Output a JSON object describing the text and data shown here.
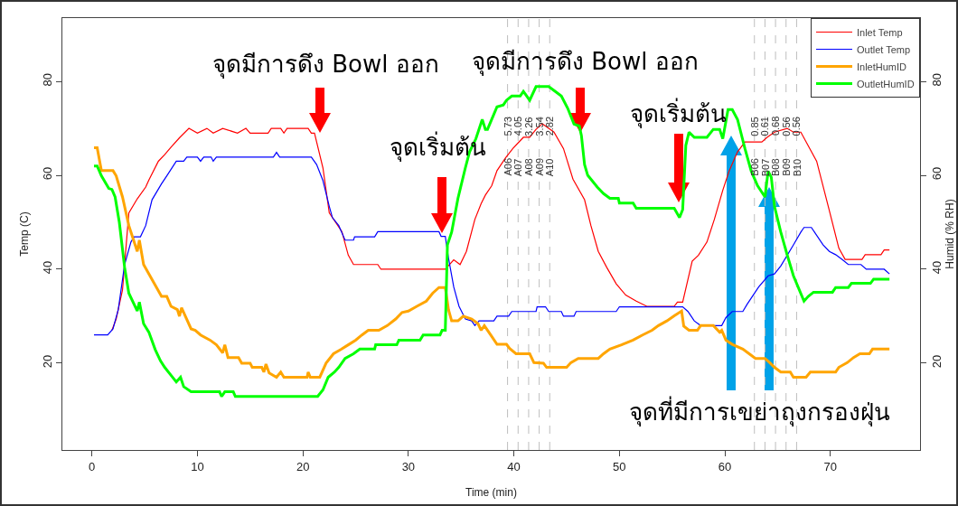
{
  "chart_data": {
    "type": "line",
    "xlabel": "Time (min)",
    "ylabel": "Temp (C)",
    "y2label": "Humid (% RH)",
    "xlim": [
      -2.8,
      78.5
    ],
    "xticks": [
      0,
      10,
      20,
      30,
      40,
      50,
      60,
      70
    ],
    "ylim": [
      1.5,
      93.5
    ],
    "yticks": [
      20,
      40,
      60,
      80
    ],
    "y2lim": [
      1.5,
      93.5
    ],
    "y2ticks": [
      20,
      40,
      60,
      80
    ],
    "grid": false,
    "legend": "top right",
    "marker": "none",
    "line_style": "solid",
    "series": [
      {
        "name": "Inlet Temp",
        "color": "#ff0000",
        "x": [
          1.9,
          2.3,
          2.9,
          3.5,
          4.3,
          5.1,
          5.4,
          6.3,
          6.9,
          7.5,
          8.3,
          9.2,
          10,
          10.9,
          11.5,
          12.4,
          13.8,
          14.6,
          15,
          16.7,
          17,
          17.9,
          18.2,
          18.5,
          20.5,
          20.8,
          21.1,
          21.9,
          22.5,
          23.7,
          24.3,
          24.8,
          27.1,
          27.4,
          33.5,
          34.3,
          34.9,
          35.5,
          36.3,
          36.9,
          37.3,
          37.9,
          38.4,
          39.2,
          39.9,
          40.9,
          41.5,
          42.1,
          42.7,
          43.3,
          43.8,
          44.7,
          45.6,
          46.7,
          47.3,
          48,
          48.8,
          49.7,
          50.6,
          51.6,
          52.6,
          55.2,
          55.5,
          56,
          56.9,
          57.5,
          58.3,
          59,
          59.8,
          60.4,
          61.2,
          61.9,
          63.5,
          64,
          64.7,
          65.9,
          66.5,
          67.2,
          68.7,
          69.8,
          70.8,
          71.4,
          73,
          73.3,
          74.8,
          75.1,
          75.6
        ],
        "values": [
          27,
          29.4,
          35.6,
          52,
          55,
          57.5,
          59,
          63,
          64.4,
          66,
          68,
          70,
          69,
          70,
          69,
          70,
          69,
          70,
          69,
          69,
          70,
          70,
          69,
          70,
          70,
          69,
          69,
          61.6,
          52,
          48,
          43,
          41,
          41,
          40,
          40,
          42,
          41,
          43.8,
          50.6,
          54,
          55.8,
          57.8,
          61,
          63.7,
          65.7,
          68.1,
          68.1,
          69.8,
          71,
          70,
          69.2,
          65.7,
          59.2,
          54.8,
          49.3,
          43.8,
          40.4,
          36.9,
          34.5,
          33.2,
          32.1,
          32.1,
          33,
          33,
          41.7,
          43,
          45.8,
          50.6,
          56.8,
          60.9,
          65,
          67.1,
          67.1,
          68.1,
          69.2,
          70,
          69.2,
          69.2,
          63,
          53.4,
          44.5,
          42.1,
          42.1,
          43.1,
          43.1,
          44.1,
          44.1
        ]
      },
      {
        "name": "Outlet Temp",
        "color": "#0000ff",
        "x": [
          0.2,
          1.5,
          2,
          2.5,
          3.1,
          3.7,
          4,
          4.6,
          5.1,
          5.7,
          6.6,
          7.1,
          8,
          8.7,
          9,
          10,
          10.3,
          10.6,
          11.3,
          11.5,
          11.8,
          17.2,
          17.5,
          17.8,
          20.8,
          21.3,
          21.9,
          22.5,
          22.8,
          23.4,
          24,
          24.8,
          24.9,
          26.8,
          27.1,
          32.9,
          33.1,
          33.5,
          33.8,
          34.3,
          34.8,
          35.4,
          36,
          36.3,
          36.7,
          38.1,
          38.4,
          39.5,
          39.8,
          42.1,
          42.2,
          43,
          43.3,
          44.5,
          44.7,
          45.7,
          45.9,
          49.7,
          50,
          56,
          56.5,
          57.1,
          57.7,
          59.7,
          60.1,
          60.7,
          61.7,
          62.1,
          63.2,
          64.1,
          64.7,
          65.3,
          66.5,
          67.2,
          67.5,
          68.2,
          69.3,
          69.9,
          70.5,
          71.1,
          71.7,
          72.9,
          73.4,
          75.1,
          75.6
        ],
        "values": [
          26,
          26,
          27.3,
          31.4,
          41,
          45.8,
          46.9,
          46.9,
          49.3,
          54.8,
          58.2,
          59.9,
          63,
          63,
          63.9,
          63.9,
          63,
          63.9,
          63.9,
          63,
          63.9,
          63.9,
          64.9,
          63.9,
          63.9,
          62.3,
          58.9,
          53.4,
          51,
          49.3,
          46.2,
          46.2,
          46.9,
          46.9,
          48,
          48,
          47,
          47,
          42.4,
          36.2,
          32.1,
          29.4,
          29,
          28,
          29,
          29,
          30,
          30,
          31,
          31,
          32,
          32,
          31,
          31,
          30,
          30,
          31,
          31,
          32,
          32,
          31,
          29,
          28,
          28,
          29.7,
          31,
          31,
          32.5,
          36.2,
          38.6,
          39,
          40.7,
          45.2,
          47.9,
          48.9,
          48.9,
          45.2,
          43.8,
          43.1,
          42.1,
          41,
          41,
          40,
          40,
          39
        ]
      },
      {
        "name": "InletHumID",
        "color": "#ffa500",
        "axis": "y2",
        "x": [
          0.2,
          0.5,
          0.9,
          2,
          2.3,
          2.9,
          3.5,
          4.3,
          4.5,
          4.9,
          6.6,
          7.1,
          7.5,
          8.1,
          8.3,
          8.5,
          9.4,
          9.8,
          10.3,
          11.2,
          11.8,
          12.4,
          12.6,
          12.9,
          13.9,
          14.2,
          15,
          15.2,
          16.1,
          16.3,
          16.5,
          16.8,
          17.5,
          17.9,
          18.2,
          20.4,
          20.5,
          20.7,
          21.6,
          22.2,
          22.9,
          23.6,
          24.3,
          25,
          25.6,
          26.2,
          27.2,
          28,
          28.8,
          29.4,
          30,
          30.8,
          31.7,
          32.3,
          32.9,
          33.5,
          33.8,
          34.1,
          34.7,
          35.2,
          36,
          36.6,
          36.9,
          37.2,
          37.8,
          38.4,
          39.3,
          39.6,
          40.2,
          41.5,
          41.9,
          42.8,
          43.1,
          45,
          45.4,
          46.1,
          48,
          48.5,
          49.1,
          50.2,
          51.3,
          52.2,
          53.1,
          53.7,
          54.5,
          55.2,
          55.9,
          56.1,
          56.6,
          57.4,
          57.7,
          58.9,
          59.5,
          59.7,
          60.1,
          60.7,
          61.7,
          62.3,
          62.9,
          63.8,
          64.3,
          64.7,
          65.3,
          66.2,
          66.5,
          67.7,
          68.1,
          70.5,
          70.8,
          71.6,
          72.2,
          72.8,
          73.7,
          74,
          75.6
        ],
        "values": [
          65.9,
          65.9,
          61,
          61,
          59.9,
          55.4,
          49.3,
          43.8,
          46.2,
          41,
          34.2,
          34.2,
          32.1,
          31.4,
          30,
          31.8,
          27.3,
          27,
          26,
          24.9,
          23.9,
          22.2,
          23.9,
          21.2,
          21.2,
          20,
          20,
          19.1,
          19.1,
          18.1,
          19.8,
          17.9,
          17,
          18.1,
          17,
          17,
          18.1,
          17,
          17,
          20,
          22,
          22.9,
          23.9,
          24.9,
          26,
          27,
          27,
          28,
          29.4,
          30.8,
          31.1,
          32.1,
          33.2,
          34.9,
          36.1,
          36.1,
          31.4,
          29,
          29,
          30,
          29.4,
          28.4,
          27,
          28,
          26,
          24,
          24,
          23.1,
          22,
          22,
          20.1,
          20,
          19.1,
          19.1,
          20.1,
          21,
          21,
          22,
          23,
          23.9,
          24.9,
          26,
          27,
          28,
          29,
          30.1,
          31.1,
          27.9,
          27,
          27,
          28,
          28,
          26.6,
          27,
          24.9,
          24,
          23,
          22,
          21,
          21,
          20,
          19.1,
          18.1,
          18.1,
          17,
          17,
          18.1,
          18.1,
          19.1,
          20.1,
          21.2,
          22,
          22,
          23,
          23
        ]
      },
      {
        "name": "OutletHumID",
        "color": "#00ff00",
        "axis": "y2",
        "x": [
          0.2,
          0.5,
          0.9,
          1.6,
          1.9,
          2.2,
          2.6,
          3.1,
          3.5,
          4.3,
          4.5,
          4.9,
          5.4,
          6,
          6.5,
          6.9,
          7.4,
          8,
          8.4,
          8.7,
          9.4,
          12.1,
          12.3,
          12.6,
          13.4,
          13.6,
          21.4,
          21.9,
          22.4,
          23,
          23.4,
          24,
          24.8,
          25.4,
          26.8,
          26.9,
          28.9,
          29.1,
          31.1,
          31.4,
          33,
          33.2,
          33.5,
          33.7,
          34.1,
          34.7,
          35.4,
          35.8,
          36.4,
          37,
          37.3,
          37.5,
          38.4,
          39,
          39.3,
          39.8,
          40.6,
          40.9,
          41.5,
          42.1,
          43.3,
          43.9,
          44.5,
          45.1,
          45.7,
          46.2,
          46.4,
          46.7,
          47,
          47.4,
          47.9,
          48.5,
          49.1,
          49.9,
          50,
          51.3,
          51.6,
          55.2,
          55.7,
          56,
          56.3,
          56.6,
          57.1,
          58.3,
          58.9,
          59.5,
          59.8,
          60.3,
          60.7,
          61.2,
          61.9,
          62.5,
          63.1,
          63.8,
          64.1,
          64.4,
          64.7,
          65.3,
          65.9,
          66.5,
          67.5,
          67.9,
          68.4,
          70.2,
          70.5,
          71.7,
          72,
          73.8,
          74.1,
          75.6
        ],
        "values": [
          62,
          62,
          59.9,
          57.2,
          57,
          55.4,
          50,
          40.4,
          34.9,
          31.1,
          33,
          28.4,
          26.6,
          22.9,
          20.5,
          19.1,
          17.7,
          16,
          17,
          15,
          13.9,
          13.9,
          12.9,
          13.9,
          13.9,
          12.9,
          12.9,
          14.3,
          17,
          18.1,
          19.1,
          21,
          22,
          23,
          23,
          23.9,
          23.9,
          24.9,
          24.9,
          26,
          26,
          27,
          27,
          45.2,
          47.9,
          55.1,
          61.6,
          65,
          67.8,
          71.9,
          69.8,
          69.8,
          74.6,
          75,
          76,
          76.9,
          76.9,
          77.9,
          76,
          78.9,
          78.9,
          77.9,
          76.9,
          74.3,
          70.9,
          70.5,
          68.5,
          62.3,
          60,
          58.9,
          57.5,
          56.1,
          55.1,
          55.1,
          54.1,
          54.1,
          53,
          53,
          51,
          52.7,
          66.4,
          69.2,
          68.1,
          68.1,
          69.8,
          69.8,
          67.8,
          74,
          74,
          71.9,
          65.7,
          60.9,
          57.8,
          55.4,
          60.9,
          59.6,
          53.4,
          47.9,
          43.1,
          38.6,
          33.2,
          34.2,
          35.1,
          35.1,
          36.1,
          36.1,
          37,
          37,
          37.9,
          37.9
        ]
      }
    ],
    "ref_lines": [
      {
        "axis": "x",
        "value": 39.4,
        "label": "A06",
        "color": "#bebebe",
        "line_style": "dashed"
      },
      {
        "axis": "x",
        "value": 40.4,
        "label": "A07",
        "color": "#bebebe",
        "line_style": "dashed"
      },
      {
        "axis": "x",
        "value": 41.4,
        "label": "A08",
        "color": "#bebebe",
        "line_style": "dashed"
      },
      {
        "axis": "x",
        "value": 42.4,
        "label": "A09",
        "color": "#bebebe",
        "line_style": "dashed"
      },
      {
        "axis": "x",
        "value": 43.4,
        "label": "A10",
        "color": "#bebebe",
        "line_style": "dashed"
      },
      {
        "axis": "x",
        "value": 62.8,
        "label": "B06",
        "color": "#bebebe",
        "line_style": "dashed"
      },
      {
        "axis": "x",
        "value": 63.8,
        "label": "B07",
        "color": "#bebebe",
        "line_style": "dashed"
      },
      {
        "axis": "x",
        "value": 64.8,
        "label": "B08",
        "color": "#bebebe",
        "line_style": "dashed"
      },
      {
        "axis": "x",
        "value": 65.8,
        "label": "B09",
        "color": "#bebebe",
        "line_style": "dashed"
      },
      {
        "axis": "x",
        "value": 66.8,
        "label": "B10",
        "color": "#bebebe",
        "line_style": "dashed"
      }
    ],
    "annotations": [
      "จุดมีการดึง Bowl ออก",
      "จุดเริ่มต้น",
      "จุดมีการดึง Bowl ออก",
      "จุดเริ่มต้น",
      "จุดที่มีการเขย่าถุงกรองฝุ่น",
      {
        "text": "5.73",
        "x": 39.4,
        "y": 70.4
      },
      {
        "text": "4.05",
        "x": 40.4,
        "y": 70.4
      },
      {
        "text": "3.26",
        "x": 41.4,
        "y": 70.4
      },
      {
        "text": "3.54",
        "x": 42.4,
        "y": 70.4
      },
      {
        "text": "2.82",
        "x": 43.4,
        "y": 70.4
      },
      {
        "text": "0.85",
        "x": 62.8,
        "y": 70.4
      },
      {
        "text": "0.61",
        "x": 63.8,
        "y": 70.4
      },
      {
        "text": "0.68",
        "x": 64.8,
        "y": 70.4
      },
      {
        "text": "0.56",
        "x": 65.8,
        "y": 70.4
      },
      {
        "text": "0.56",
        "x": 66.8,
        "y": 70.4
      }
    ]
  }
}
